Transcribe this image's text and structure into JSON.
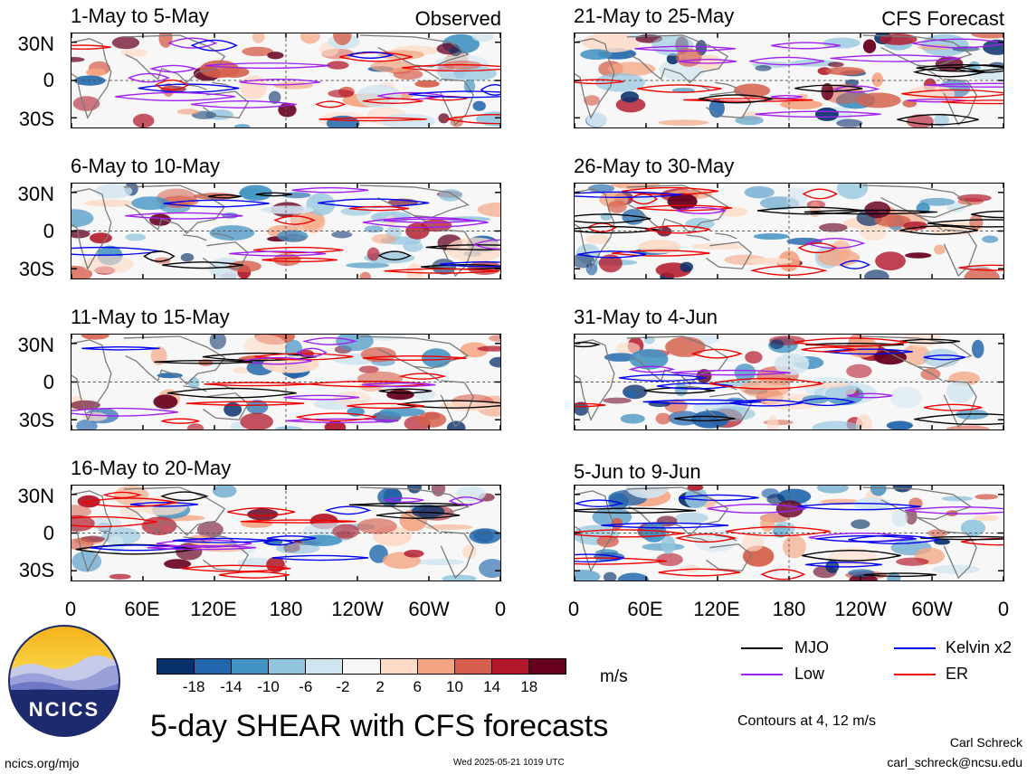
{
  "panels": [
    {
      "title": "1-May to 5-May",
      "tag": "Observed",
      "seed": 11
    },
    {
      "title": "21-May to 25-May",
      "tag": "CFS Forecast",
      "seed": 23
    },
    {
      "title": "6-May to 10-May",
      "tag": "",
      "seed": 37
    },
    {
      "title": "26-May to 30-May",
      "tag": "",
      "seed": 41
    },
    {
      "title": "11-May to 15-May",
      "tag": "",
      "seed": 53
    },
    {
      "title": "31-May to 4-Jun",
      "tag": "",
      "seed": 67
    },
    {
      "title": "16-May to 20-May",
      "tag": "",
      "seed": 79
    },
    {
      "title": "5-Jun to 9-Jun",
      "tag": "",
      "seed": 83
    }
  ],
  "y_ticks": [
    "30N",
    "0",
    "30S"
  ],
  "x_ticks": [
    "0",
    "60E",
    "120E",
    "180",
    "120W",
    "60W",
    "0"
  ],
  "colorbar": {
    "labels": [
      "-18",
      "-14",
      "-10",
      "-6",
      "-2",
      "2",
      "6",
      "10",
      "14",
      "18"
    ],
    "unit": "m/s",
    "colors": [
      "#08306b",
      "#2166ac",
      "#4393c3",
      "#92c5de",
      "#d1e5f0",
      "#f7f7f7",
      "#fddbc7",
      "#f4a582",
      "#d6604d",
      "#b2182b",
      "#67001f"
    ]
  },
  "legend": [
    {
      "label": "MJO",
      "color": "#000000"
    },
    {
      "label": "Kelvin x2",
      "color": "#0000ee"
    },
    {
      "label": "Low",
      "color": "#a020f0"
    },
    {
      "label": "ER",
      "color": "#ee0000"
    }
  ],
  "contours_note": "Contours at 4, 12 m/s",
  "main_title": "5-day SHEAR with CFS forecasts",
  "logo_text": "NCICS",
  "footer": {
    "site": "ncics.org/mjo",
    "timestamp": "Wed 2025-05-21 1019 UTC",
    "author": "Carl Schreck",
    "email": "carl_schreck@ncsu.edu"
  }
}
